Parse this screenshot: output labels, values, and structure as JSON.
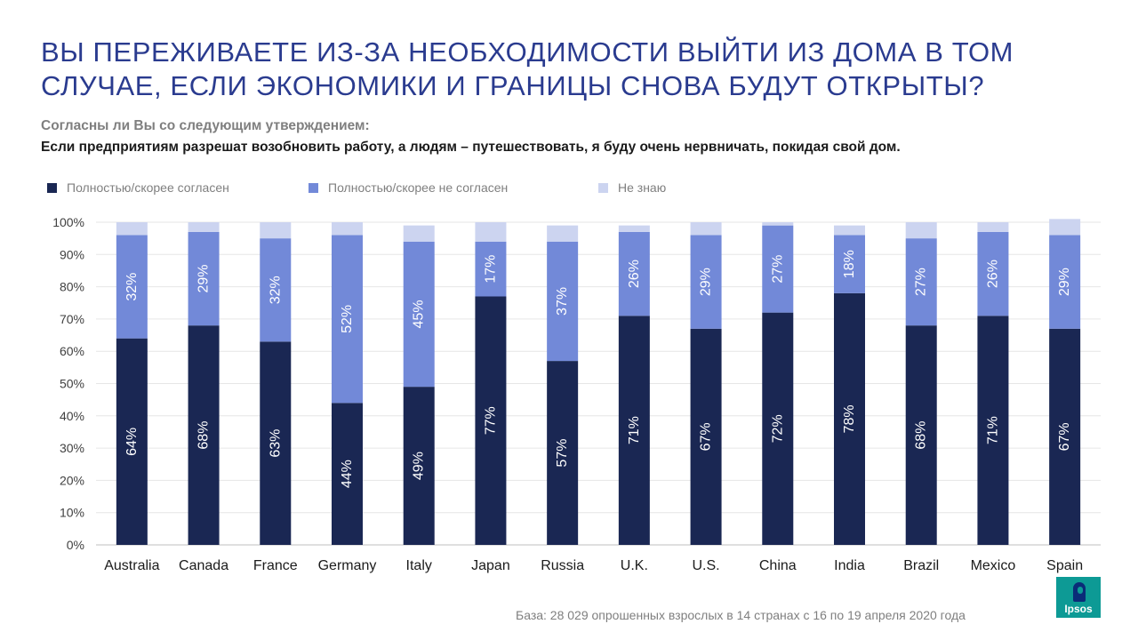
{
  "title": {
    "line1": "ВЫ ПЕРЕЖИВАЕТЕ ИЗ-ЗА НЕОБХОДИМОСТИ ВЫЙТИ ИЗ ДОМА В ТОМ",
    "line2": "СЛУЧАЕ, ЕСЛИ ЭКОНОМИКИ И ГРАНИЦЫ СНОВА БУДУТ ОТКРЫТЫ?"
  },
  "question": {
    "prompt": "Согласны ли Вы со следующим утверждением:",
    "statement": "Если предприятиям разрешат возобновить работу, а людям – путешествовать, я буду очень нервничать, покидая свой дом."
  },
  "footer": "База: 28 029 опрошенных  взрослых в 14 странах с 16 по 19 апреля 2020 года",
  "logo": {
    "text": "Ipsos"
  },
  "colors": {
    "agree": "#1a2753",
    "disagree": "#7289d8",
    "dont_know": "#ccd4f0",
    "title": "#2a3b8f",
    "gridline": "#e6e6e6"
  },
  "legend": [
    {
      "label": "Полностью/скорее согласен",
      "color": "#1a2753"
    },
    {
      "label": "Полностью/скорее не согласен",
      "color": "#7289d8"
    },
    {
      "label": "Не знаю",
      "color": "#ccd4f0"
    }
  ],
  "chart_data": {
    "type": "bar",
    "stacked": true,
    "categories": [
      "Australia",
      "Canada",
      "France",
      "Germany",
      "Italy",
      "Japan",
      "Russia",
      "U.K.",
      "U.S.",
      "China",
      "India",
      "Brazil",
      "Mexico",
      "Spain"
    ],
    "series": [
      {
        "name": "Полностью/скорее согласен",
        "values": [
          64,
          68,
          63,
          44,
          49,
          77,
          57,
          71,
          67,
          72,
          78,
          68,
          71,
          67
        ],
        "labels": [
          "64%",
          "68%",
          "63%",
          "44%",
          "49%",
          "77%",
          "57%",
          "71%",
          "67%",
          "72%",
          "78%",
          "68%",
          "71%",
          "67%"
        ]
      },
      {
        "name": "Полностью/скорее не согласен",
        "values": [
          32,
          29,
          32,
          52,
          45,
          17,
          37,
          26,
          29,
          27,
          18,
          27,
          26,
          29
        ],
        "labels": [
          "32%",
          "29%",
          "32%",
          "52%",
          "45%",
          "17%",
          "37%",
          "26%",
          "29%",
          "27%",
          "18%",
          "27%",
          "26%",
          "29%"
        ]
      },
      {
        "name": "Не знаю",
        "values": [
          4,
          3,
          5,
          4,
          5,
          6,
          5,
          2,
          4,
          1,
          3,
          5,
          3,
          5
        ],
        "labels": []
      }
    ],
    "ylim": [
      0,
      100
    ],
    "yticks": [
      "0%",
      "10%",
      "20%",
      "30%",
      "40%",
      "50%",
      "60%",
      "70%",
      "80%",
      "90%",
      "100%"
    ],
    "grid": true
  }
}
